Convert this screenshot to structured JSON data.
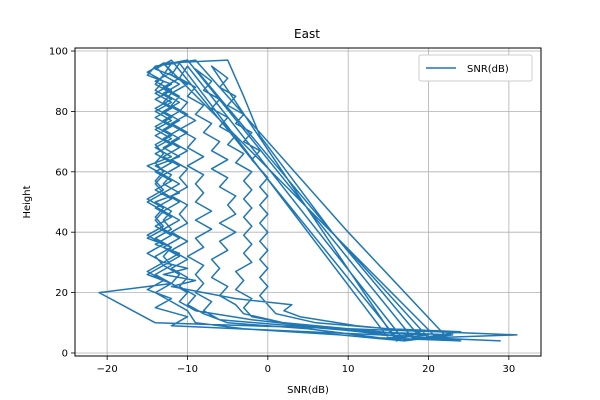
{
  "chart_data": {
    "type": "line",
    "title": "East",
    "xlabel": "SNR(dB)",
    "ylabel": "Height",
    "xlim": [
      -24,
      34
    ],
    "ylim": [
      -1,
      101
    ],
    "xticks": [
      -20,
      -10,
      0,
      10,
      20,
      30
    ],
    "yticks": [
      0,
      20,
      40,
      60,
      80,
      100
    ],
    "grid": true,
    "legend": {
      "placement": "top-right",
      "entries": [
        "SNR(dB)"
      ]
    },
    "series": [
      {
        "name": "SNR(dB)",
        "color": "#1f77b4",
        "points": [
          [
            29,
            4
          ],
          [
            20,
            5
          ],
          [
            14,
            6
          ],
          [
            5,
            7
          ],
          [
            -12,
            9
          ],
          [
            -10,
            12
          ],
          [
            -14,
            15
          ],
          [
            -12,
            18
          ],
          [
            -15,
            21
          ],
          [
            -13,
            24
          ],
          [
            -15,
            27
          ],
          [
            -13,
            30
          ],
          [
            -15,
            33
          ],
          [
            -13,
            36
          ],
          [
            -15,
            39
          ],
          [
            -13,
            42
          ],
          [
            -14,
            45
          ],
          [
            -13,
            48
          ],
          [
            -15,
            51
          ],
          [
            -13,
            54
          ],
          [
            -14,
            57
          ],
          [
            -13,
            60
          ],
          [
            -14,
            63
          ],
          [
            -13,
            66
          ],
          [
            -14,
            69
          ],
          [
            -12,
            72
          ],
          [
            -14,
            75
          ],
          [
            -12,
            78
          ],
          [
            -14,
            81
          ],
          [
            -12,
            84
          ],
          [
            -14,
            87
          ],
          [
            -13,
            90
          ],
          [
            -15,
            93
          ],
          [
            -13,
            96
          ],
          [
            -5,
            97
          ],
          [
            -3,
            85
          ],
          [
            -1,
            72
          ],
          [
            8,
            40
          ],
          [
            20,
            5
          ],
          [
            31,
            6
          ],
          [
            21,
            7
          ],
          [
            10,
            8
          ],
          [
            -14,
            10
          ],
          [
            -21,
            20
          ],
          [
            -12,
            23
          ],
          [
            -15,
            26
          ],
          [
            -13,
            29
          ],
          [
            -14,
            32
          ],
          [
            -12,
            35
          ],
          [
            -15,
            38
          ],
          [
            -13,
            41
          ],
          [
            -14,
            44
          ],
          [
            -13,
            47
          ],
          [
            -15,
            50
          ],
          [
            -13,
            53
          ],
          [
            -14,
            56
          ],
          [
            -13,
            59
          ],
          [
            -15,
            62
          ],
          [
            -12,
            65
          ],
          [
            -14,
            68
          ],
          [
            -12,
            71
          ],
          [
            -14,
            74
          ],
          [
            -12,
            77
          ],
          [
            -14,
            80
          ],
          [
            -12,
            83
          ],
          [
            -14,
            86
          ],
          [
            -12,
            89
          ],
          [
            -15,
            92
          ],
          [
            -14,
            95
          ],
          [
            -9,
            97
          ],
          [
            10,
            40
          ],
          [
            22,
            6
          ],
          [
            17,
            4
          ],
          [
            9,
            6
          ],
          [
            -3,
            8
          ],
          [
            -9,
            10
          ],
          [
            -10,
            14
          ],
          [
            -12,
            17
          ],
          [
            -14,
            20
          ],
          [
            -12,
            23
          ],
          [
            -14,
            26
          ],
          [
            -12,
            29
          ],
          [
            -13,
            32
          ],
          [
            -12,
            35
          ],
          [
            -14,
            38
          ],
          [
            -12,
            41
          ],
          [
            -13,
            44
          ],
          [
            -12,
            47
          ],
          [
            -14,
            50
          ],
          [
            -11,
            53
          ],
          [
            -13,
            56
          ],
          [
            -12,
            59
          ],
          [
            -14,
            62
          ],
          [
            -11,
            65
          ],
          [
            -13,
            68
          ],
          [
            -11,
            71
          ],
          [
            -13,
            74
          ],
          [
            -11,
            77
          ],
          [
            -13,
            80
          ],
          [
            -11,
            83
          ],
          [
            -13,
            86
          ],
          [
            -11,
            89
          ],
          [
            -13,
            92
          ],
          [
            -12,
            96
          ],
          [
            -10,
            97
          ],
          [
            18,
            5
          ],
          [
            24,
            4
          ],
          [
            14,
            5
          ],
          [
            5,
            8
          ],
          [
            -5,
            10
          ],
          [
            -8,
            13
          ],
          [
            -10,
            16
          ],
          [
            -9,
            19
          ],
          [
            -11,
            22
          ],
          [
            -10,
            25
          ],
          [
            -12,
            28
          ],
          [
            -10,
            31
          ],
          [
            -12,
            34
          ],
          [
            -10,
            37
          ],
          [
            -12,
            40
          ],
          [
            -10,
            43
          ],
          [
            -11,
            46
          ],
          [
            -10,
            49
          ],
          [
            -12,
            52
          ],
          [
            -10,
            55
          ],
          [
            -11,
            58
          ],
          [
            -10,
            61
          ],
          [
            -12,
            64
          ],
          [
            -10,
            67
          ],
          [
            -12,
            70
          ],
          [
            -10,
            73
          ],
          [
            -12,
            76
          ],
          [
            -10,
            79
          ],
          [
            -12,
            82
          ],
          [
            -11,
            85
          ],
          [
            -13,
            88
          ],
          [
            -11,
            91
          ],
          [
            -14,
            94
          ],
          [
            -12,
            97
          ],
          [
            16,
            5
          ],
          [
            20,
            6
          ],
          [
            12,
            7
          ],
          [
            3,
            9
          ],
          [
            -6,
            11
          ],
          [
            -8,
            14
          ],
          [
            -7,
            17
          ],
          [
            -9,
            20
          ],
          [
            -8,
            23
          ],
          [
            -9,
            26
          ],
          [
            -8,
            29
          ],
          [
            -10,
            32
          ],
          [
            -8,
            35
          ],
          [
            -9,
            38
          ],
          [
            -7,
            41
          ],
          [
            -9,
            44
          ],
          [
            -7,
            47
          ],
          [
            -9,
            50
          ],
          [
            -8,
            53
          ],
          [
            -9,
            56
          ],
          [
            -8,
            59
          ],
          [
            -10,
            62
          ],
          [
            -8,
            65
          ],
          [
            -10,
            68
          ],
          [
            -9,
            71
          ],
          [
            -11,
            74
          ],
          [
            -9,
            77
          ],
          [
            -11,
            80
          ],
          [
            -10,
            83
          ],
          [
            -12,
            86
          ],
          [
            -10,
            89
          ],
          [
            -12,
            92
          ],
          [
            -11,
            96
          ],
          [
            15,
            5
          ],
          [
            18,
            6
          ],
          [
            10,
            8
          ],
          [
            2,
            10
          ],
          [
            -3,
            13
          ],
          [
            -4,
            16
          ],
          [
            -6,
            19
          ],
          [
            -5,
            22
          ],
          [
            -7,
            25
          ],
          [
            -6,
            28
          ],
          [
            -7,
            31
          ],
          [
            -5,
            34
          ],
          [
            -6,
            37
          ],
          [
            -4,
            40
          ],
          [
            -6,
            43
          ],
          [
            -4,
            46
          ],
          [
            -5,
            49
          ],
          [
            -4,
            52
          ],
          [
            -6,
            55
          ],
          [
            -5,
            58
          ],
          [
            -7,
            61
          ],
          [
            -5,
            64
          ],
          [
            -7,
            67
          ],
          [
            -6,
            70
          ],
          [
            -8,
            73
          ],
          [
            -7,
            76
          ],
          [
            -9,
            79
          ],
          [
            -8,
            82
          ],
          [
            -10,
            85
          ],
          [
            -9,
            88
          ],
          [
            -11,
            91
          ],
          [
            -10,
            95
          ],
          [
            17,
            4
          ],
          [
            23,
            6
          ],
          [
            13,
            7
          ],
          [
            4,
            9
          ],
          [
            -2,
            12
          ],
          [
            -3,
            15
          ],
          [
            -2,
            18
          ],
          [
            -4,
            21
          ],
          [
            -3,
            24
          ],
          [
            -4,
            27
          ],
          [
            -2,
            30
          ],
          [
            -3,
            33
          ],
          [
            -2,
            36
          ],
          [
            -3,
            39
          ],
          [
            -2,
            42
          ],
          [
            -3,
            45
          ],
          [
            -2,
            48
          ],
          [
            -3,
            51
          ],
          [
            -2,
            54
          ],
          [
            -3,
            57
          ],
          [
            -2,
            60
          ],
          [
            -4,
            63
          ],
          [
            -3,
            66
          ],
          [
            -5,
            69
          ],
          [
            -4,
            72
          ],
          [
            -6,
            75
          ],
          [
            -5,
            78
          ],
          [
            -7,
            81
          ],
          [
            -6,
            84
          ],
          [
            -8,
            87
          ],
          [
            -7,
            90
          ],
          [
            -9,
            94
          ],
          [
            19,
            5
          ],
          [
            24,
            7
          ],
          [
            15,
            8
          ],
          [
            6,
            10
          ],
          [
            1,
            13
          ],
          [
            0,
            16
          ],
          [
            -1,
            19
          ],
          [
            0,
            22
          ],
          [
            -1,
            25
          ],
          [
            0,
            28
          ],
          [
            -1,
            31
          ],
          [
            0,
            34
          ],
          [
            -1,
            37
          ],
          [
            0,
            40
          ],
          [
            -1,
            43
          ],
          [
            0,
            46
          ],
          [
            -1,
            49
          ],
          [
            0,
            52
          ],
          [
            -1,
            55
          ],
          [
            0,
            58
          ],
          [
            -1,
            61
          ],
          [
            -2,
            64
          ],
          [
            -1,
            67
          ],
          [
            -3,
            70
          ],
          [
            -2,
            73
          ],
          [
            -4,
            76
          ],
          [
            -3,
            79
          ],
          [
            -5,
            82
          ],
          [
            -4,
            85
          ],
          [
            -6,
            88
          ],
          [
            -5,
            91
          ],
          [
            -7,
            95
          ],
          [
            16,
            4
          ],
          [
            19,
            7
          ],
          [
            11,
            9
          ],
          [
            4,
            12
          ],
          [
            2,
            14
          ],
          [
            3,
            16
          ],
          [
            -4,
            18
          ],
          [
            -8,
            20
          ],
          [
            -12,
            22
          ],
          [
            -9,
            24
          ],
          [
            -13,
            26
          ],
          [
            -10,
            28
          ],
          [
            -13,
            30
          ],
          [
            -11,
            33
          ],
          [
            -14,
            36
          ],
          [
            -12,
            39
          ],
          [
            -14,
            42
          ],
          [
            -12,
            45
          ],
          [
            -14,
            48
          ],
          [
            -12,
            51
          ],
          [
            -14,
            54
          ],
          [
            -12,
            57
          ],
          [
            -14,
            60
          ],
          [
            -12,
            63
          ],
          [
            -14,
            66
          ],
          [
            -12,
            69
          ],
          [
            -14,
            72
          ],
          [
            -12,
            75
          ],
          [
            -14,
            78
          ],
          [
            -12,
            81
          ],
          [
            -14,
            84
          ],
          [
            -12,
            87
          ],
          [
            -14,
            90
          ],
          [
            -12,
            93
          ],
          [
            -13,
            96
          ],
          [
            21,
            5
          ],
          [
            15,
            6
          ],
          [
            8,
            8
          ],
          [
            -2,
            11
          ],
          [
            -9,
            14
          ],
          [
            -11,
            17
          ],
          [
            -10,
            20
          ],
          [
            -12,
            23
          ],
          [
            -11,
            26
          ],
          [
            -13,
            29
          ],
          [
            -11,
            32
          ],
          [
            -13,
            35
          ],
          [
            -11,
            38
          ],
          [
            -13,
            41
          ],
          [
            -11,
            44
          ],
          [
            -13,
            47
          ],
          [
            -11,
            50
          ],
          [
            -13,
            53
          ],
          [
            -11,
            56
          ],
          [
            -13,
            59
          ],
          [
            -11,
            62
          ],
          [
            -13,
            65
          ],
          [
            -11,
            68
          ],
          [
            -13,
            71
          ],
          [
            -11,
            74
          ],
          [
            -13,
            77
          ],
          [
            -11,
            80
          ],
          [
            -13,
            83
          ],
          [
            -12,
            86
          ],
          [
            -14,
            89
          ],
          [
            -13,
            92
          ],
          [
            -14,
            95
          ]
        ]
      }
    ]
  }
}
